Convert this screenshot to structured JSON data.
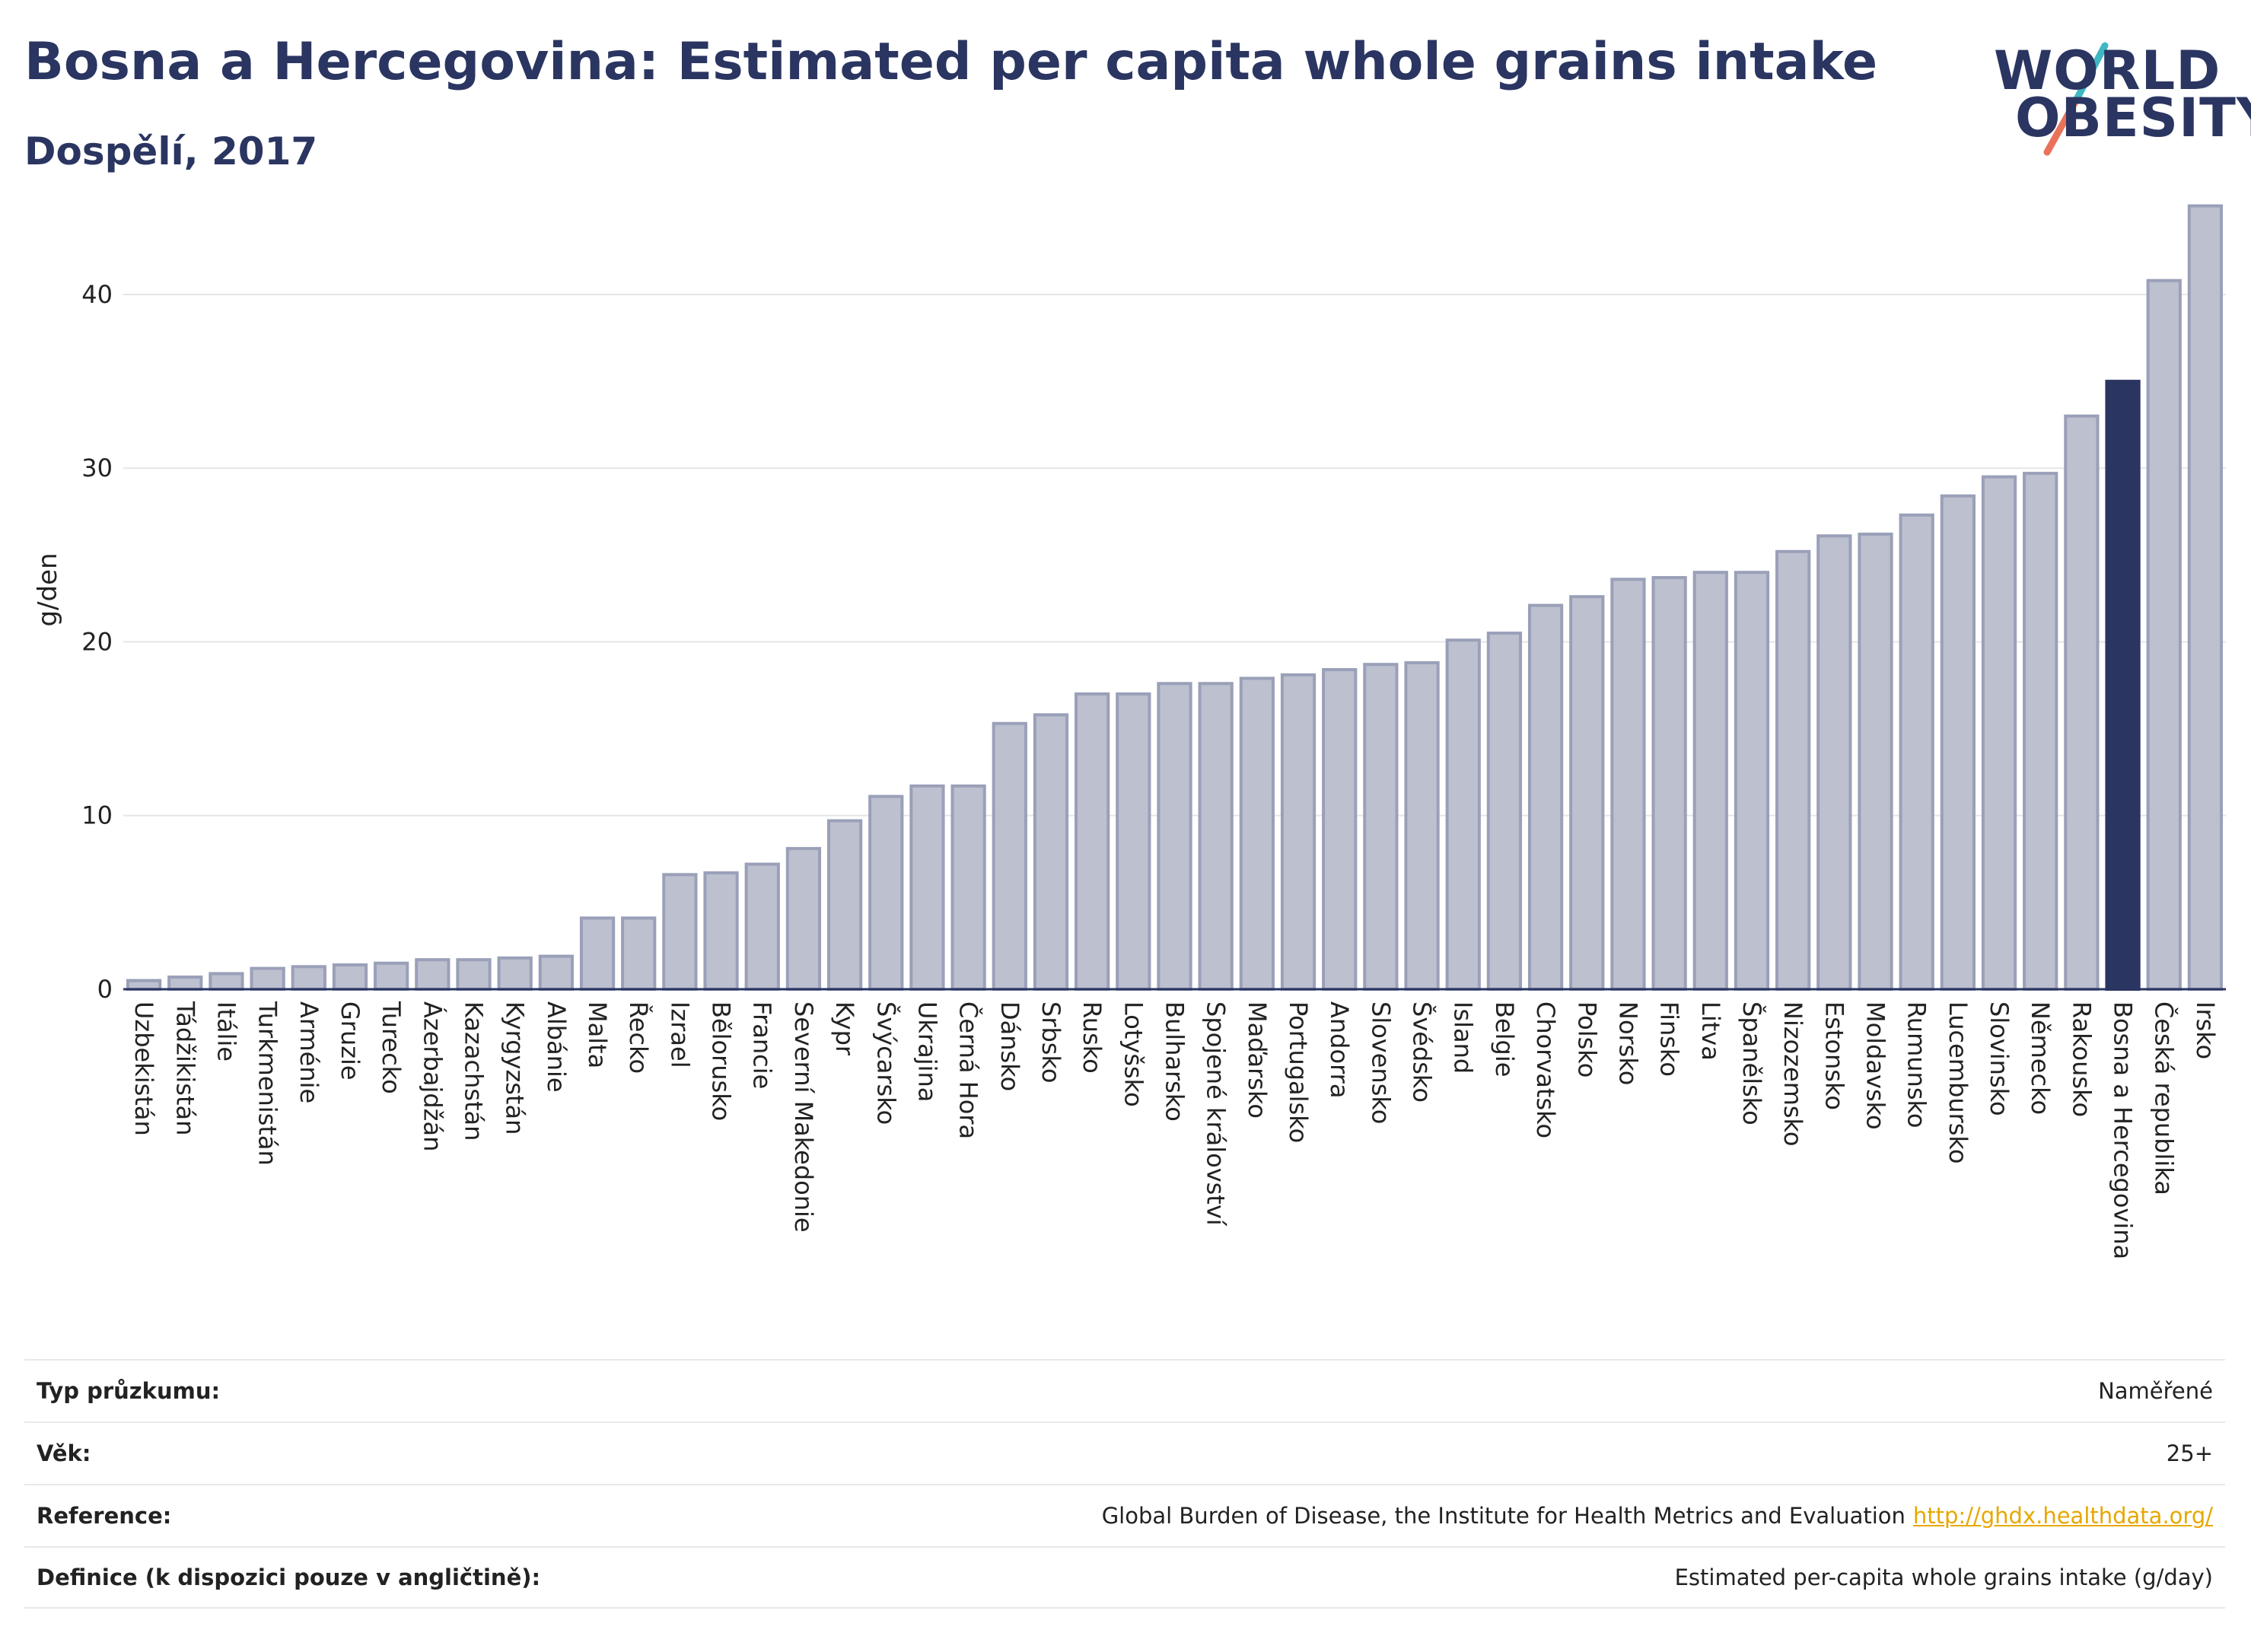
{
  "header": {
    "title": "Bosna a Hercegovina: Estimated per capita whole grains intake",
    "subtitle": "Dospělí, 2017"
  },
  "logo": {
    "line1": "WORLD",
    "line2": "OBESITY",
    "text_color": "#2a3561",
    "slash_colors": [
      "#3fb8c4",
      "#e8735a"
    ]
  },
  "chart_data": {
    "type": "bar",
    "title": "Bosna a Hercegovina: Estimated per capita whole grains intake",
    "subtitle": "Dospělí, 2017",
    "ylabel": "g/den",
    "xlabel": "",
    "ylim": [
      0,
      46
    ],
    "yticks": [
      0,
      10,
      20,
      30,
      40
    ],
    "grid": true,
    "highlight": "Bosna a Hercegovina",
    "colors": {
      "default": "#bcc0cf",
      "default_border": "#9aa0b8",
      "highlight": "#2a3561"
    },
    "categories": [
      "Uzbekistán",
      "Tádžikistán",
      "Itálie",
      "Turkmenistán",
      "Arménie",
      "Gruzie",
      "Turecko",
      "Ázerbajdžán",
      "Kazachstán",
      "Kyrgyzstán",
      "Albánie",
      "Malta",
      "Řecko",
      "Izrael",
      "Bělorusko",
      "Francie",
      "Severní Makedonie",
      "Kypr",
      "Švýcarsko",
      "Ukrajina",
      "Černá Hora",
      "Dánsko",
      "Srbsko",
      "Rusko",
      "Lotyšsko",
      "Bulharsko",
      "Spojené království",
      "Maďarsko",
      "Portugalsko",
      "Andorra",
      "Slovensko",
      "Švédsko",
      "Island",
      "Belgie",
      "Chorvatsko",
      "Polsko",
      "Norsko",
      "Finsko",
      "Litva",
      "Španělsko",
      "Nizozemsko",
      "Estonsko",
      "Moldavsko",
      "Rumunsko",
      "Lucembursko",
      "Slovinsko",
      "Německo",
      "Rakousko",
      "Bosna a Hercegovina",
      "Česká republika",
      "Irsko"
    ],
    "values": [
      0.5,
      0.7,
      0.9,
      1.2,
      1.3,
      1.4,
      1.5,
      1.7,
      1.7,
      1.8,
      1.9,
      4.1,
      4.1,
      6.6,
      6.7,
      7.2,
      8.1,
      9.7,
      11.1,
      11.7,
      11.7,
      15.3,
      15.8,
      17.0,
      17.0,
      17.6,
      17.6,
      17.9,
      18.1,
      18.4,
      18.7,
      18.8,
      20.1,
      20.5,
      22.1,
      22.6,
      23.6,
      23.7,
      24.0,
      24.0,
      25.2,
      26.1,
      26.2,
      27.3,
      28.4,
      29.5,
      29.7,
      33.0,
      35.0,
      40.8,
      45.1
    ]
  },
  "info": {
    "rows": [
      {
        "key": "Typ průzkumu:",
        "value": "Naměřené"
      },
      {
        "key": "Věk:",
        "value": "25+"
      },
      {
        "key": "Reference:",
        "value": "Global Burden of Disease, the Institute for Health Metrics and Evaluation",
        "link": "http://ghdx.healthdata.org/"
      },
      {
        "key": "Definice (k dispozici pouze v angličtině):",
        "value": "Estimated per-capita whole grains intake (g/day)"
      }
    ]
  }
}
